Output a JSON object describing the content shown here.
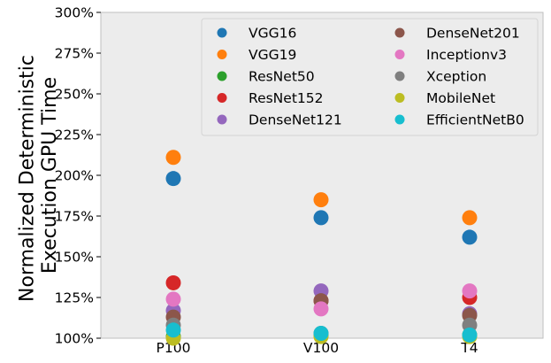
{
  "chart_data": {
    "type": "scatter",
    "title": "",
    "ylabel": [
      "Normalized Deterministic",
      "Execution GPU Time"
    ],
    "xlabel": "",
    "categories": [
      "P100",
      "V100",
      "T4"
    ],
    "ylim": [
      100,
      300
    ],
    "yticks": [
      100,
      125,
      150,
      175,
      200,
      225,
      250,
      275,
      300
    ],
    "ytick_labels": [
      "100%",
      "125%",
      "150%",
      "175%",
      "200%",
      "225%",
      "250%",
      "275%",
      "300%"
    ],
    "grid": false,
    "background": "#ececec",
    "legend_position": "top-right",
    "legend_columns": 2,
    "series": [
      {
        "name": "VGG16",
        "color": "#1f77b4",
        "values": [
          198,
          174,
          162
        ]
      },
      {
        "name": "VGG19",
        "color": "#ff7f0e",
        "values": [
          211,
          185,
          174
        ]
      },
      {
        "name": "ResNet50",
        "color": "#2ca02c",
        "values": [
          101,
          102,
          102
        ]
      },
      {
        "name": "ResNet152",
        "color": "#d62728",
        "values": [
          134,
          123,
          125
        ]
      },
      {
        "name": "DenseNet121",
        "color": "#9467bd",
        "values": [
          117,
          129,
          115
        ]
      },
      {
        "name": "DenseNet201",
        "color": "#8c564b",
        "values": [
          113,
          123,
          114
        ]
      },
      {
        "name": "Inceptionv3",
        "color": "#e377c2",
        "values": [
          124,
          118,
          129
        ]
      },
      {
        "name": "Xception",
        "color": "#7f7f7f",
        "values": [
          108,
          103,
          108
        ]
      },
      {
        "name": "MobileNet",
        "color": "#bcbd22",
        "values": [
          100,
          101,
          101
        ]
      },
      {
        "name": "EfficientNetB0",
        "color": "#17becf",
        "values": [
          105,
          103,
          102
        ]
      }
    ]
  }
}
